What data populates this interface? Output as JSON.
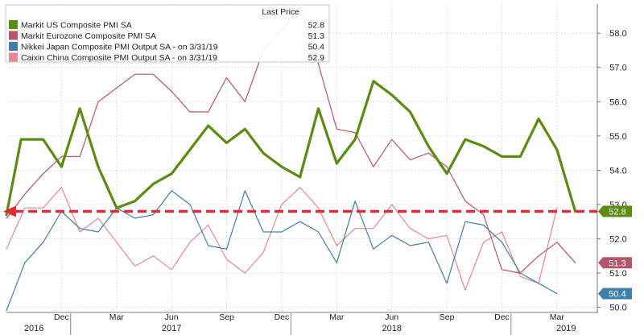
{
  "chart_data": {
    "type": "line",
    "legend": {
      "header": "Last Price",
      "placement": "top-left",
      "entries": [
        {
          "label": "Markit US Composite PMI SA",
          "value": "52.8"
        },
        {
          "label": "Markit Eurozone Composite PMI SA",
          "value": "51.3"
        },
        {
          "label": "Nikkei Japan Composite PMI Output SA - on 3/31/19",
          "value": "50.4"
        },
        {
          "label": "Caixin China Composite PMI Output SA - on 3/31/19",
          "value": "52.9"
        }
      ]
    },
    "x_tick_labels": [
      "Dec",
      "Mar",
      "Jun",
      "Sep",
      "Dec",
      "Mar",
      "Jun",
      "Sep",
      "Dec",
      "Mar"
    ],
    "x_tick_month_index": [
      3,
      6,
      9,
      12,
      15,
      18,
      21,
      24,
      27,
      30
    ],
    "year_labels": [
      "2016",
      "2017",
      "2018",
      "2019"
    ],
    "year_label_month_index": [
      1.5,
      9,
      21,
      30.5
    ],
    "year_divider_month_index": [
      3.5,
      15.5,
      27.5
    ],
    "y_ticks": [
      "50.0",
      "51.0",
      "52.0",
      "53.0",
      "54.0",
      "55.0",
      "56.0",
      "57.0",
      "58.0"
    ],
    "ylim": [
      49.85,
      58.85
    ],
    "xlim": [
      0,
      32.2
    ],
    "grid": true,
    "reference_line": {
      "value": 52.8,
      "color": "#dc2d3b"
    },
    "series": [
      {
        "name": "Markit US Composite PMI SA",
        "color": "#5a8c11",
        "last_label": "52.8",
        "x": [
          0,
          0.8,
          2,
          3,
          4,
          5,
          6,
          7,
          8,
          9,
          10,
          11,
          12,
          13,
          14,
          15,
          16,
          17,
          18,
          19,
          20,
          21,
          22,
          23,
          24,
          25,
          26,
          27,
          28,
          29,
          30,
          31
        ],
        "values": [
          52.7,
          54.9,
          54.9,
          54.1,
          55.8,
          54.1,
          52.9,
          53.1,
          53.6,
          53.9,
          54.6,
          55.3,
          54.8,
          55.2,
          54.5,
          54.1,
          53.8,
          55.8,
          54.2,
          54.9,
          56.6,
          56.2,
          55.7,
          54.7,
          53.9,
          54.9,
          54.7,
          54.4,
          54.4,
          55.5,
          54.6,
          52.8
        ]
      },
      {
        "name": "Markit Eurozone Composite PMI SA",
        "color": "#b5546b",
        "last_label": "51.3",
        "x": [
          0,
          1,
          2,
          3,
          4,
          5,
          6,
          7,
          8,
          9,
          10,
          11,
          12,
          13,
          14,
          15,
          16,
          17,
          18,
          19,
          20,
          21,
          22,
          23,
          24,
          25,
          26,
          27,
          28,
          29,
          30,
          31
        ],
        "values": [
          52.6,
          53.3,
          53.9,
          54.4,
          54.4,
          56.0,
          56.4,
          56.8,
          56.8,
          56.3,
          55.7,
          55.7,
          56.7,
          56.0,
          57.5,
          58.1,
          58.8,
          57.1,
          55.2,
          55.1,
          54.1,
          54.9,
          54.3,
          54.5,
          54.1,
          53.1,
          52.7,
          51.1,
          51.0,
          51.5,
          51.9,
          51.3
        ]
      },
      {
        "name": "Nikkei Japan Composite PMI Output SA",
        "color": "#3d7fa8",
        "last_label": "50.4",
        "x": [
          0,
          1,
          2,
          3,
          4,
          5,
          6,
          7,
          8,
          9,
          10,
          11,
          12,
          13,
          14,
          15,
          16,
          17,
          18,
          19,
          20,
          21,
          22,
          23,
          24,
          25,
          26,
          27,
          28,
          29,
          30
        ],
        "values": [
          49.9,
          51.3,
          51.9,
          52.8,
          52.3,
          52.2,
          52.9,
          52.6,
          52.7,
          53.4,
          53.0,
          51.8,
          51.7,
          53.4,
          52.2,
          52.2,
          52.5,
          52.2,
          51.3,
          53.1,
          51.7,
          52.1,
          51.8,
          51.9,
          50.7,
          52.5,
          52.4,
          51.9,
          51.0,
          50.7,
          50.4
        ]
      },
      {
        "name": "Caixin China Composite PMI Output SA",
        "color": "#e8888f",
        "last_label": "52.9",
        "x": [
          0,
          1,
          2,
          3,
          4,
          5,
          6,
          7,
          8,
          9,
          10,
          11,
          12,
          13,
          14,
          15,
          16,
          17,
          18,
          19,
          20,
          21,
          22,
          23,
          24,
          25,
          26,
          27,
          28,
          29,
          30
        ],
        "values": [
          51.7,
          52.9,
          52.9,
          53.5,
          52.2,
          52.6,
          51.9,
          51.2,
          51.5,
          51.1,
          51.9,
          52.4,
          51.4,
          51.0,
          51.6,
          53.0,
          53.5,
          52.9,
          51.8,
          52.3,
          52.3,
          53.0,
          52.3,
          52.0,
          52.1,
          50.5,
          51.9,
          52.2,
          50.9,
          50.7,
          52.9
        ]
      }
    ]
  }
}
